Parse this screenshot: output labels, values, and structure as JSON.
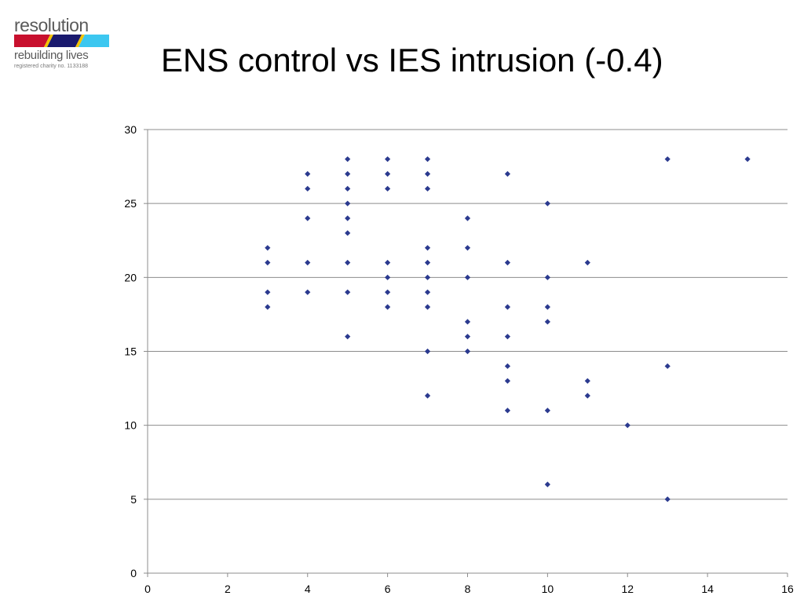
{
  "logo": {
    "word": "resolution",
    "tagline": "rebuilding lives",
    "charity": "registered charity no. 1133188",
    "colors": [
      "#c8102e",
      "#1a1a6e",
      "#3cc7f0",
      "#f2c200"
    ]
  },
  "title": "ENS control vs IES intrusion (-0.4)",
  "chart_data": {
    "type": "scatter",
    "title": "ENS control vs IES intrusion (-0.4)",
    "xlabel": "",
    "ylabel": "",
    "xlim": [
      0,
      16
    ],
    "ylim": [
      0,
      30
    ],
    "x_ticks": [
      0,
      2,
      4,
      6,
      8,
      10,
      12,
      14,
      16
    ],
    "y_ticks": [
      0,
      5,
      10,
      15,
      20,
      25,
      30
    ],
    "grid": "horizontal",
    "marker": "diamond",
    "color": "#2b3a8f",
    "points": [
      [
        3,
        22
      ],
      [
        3,
        21
      ],
      [
        3,
        19
      ],
      [
        3,
        18
      ],
      [
        4,
        27
      ],
      [
        4,
        26
      ],
      [
        4,
        24
      ],
      [
        4,
        21
      ],
      [
        4,
        19
      ],
      [
        5,
        28
      ],
      [
        5,
        27
      ],
      [
        5,
        26
      ],
      [
        5,
        25
      ],
      [
        5,
        24
      ],
      [
        5,
        23
      ],
      [
        5,
        21
      ],
      [
        5,
        19
      ],
      [
        5,
        16
      ],
      [
        6,
        28
      ],
      [
        6,
        27
      ],
      [
        6,
        26
      ],
      [
        6,
        21
      ],
      [
        6,
        20
      ],
      [
        6,
        19
      ],
      [
        6,
        18
      ],
      [
        7,
        28
      ],
      [
        7,
        27
      ],
      [
        7,
        26
      ],
      [
        7,
        22
      ],
      [
        7,
        21
      ],
      [
        7,
        20
      ],
      [
        7,
        19
      ],
      [
        7,
        18
      ],
      [
        7,
        15
      ],
      [
        7,
        12
      ],
      [
        8,
        24
      ],
      [
        8,
        22
      ],
      [
        8,
        20
      ],
      [
        8,
        17
      ],
      [
        8,
        16
      ],
      [
        8,
        15
      ],
      [
        9,
        27
      ],
      [
        9,
        21
      ],
      [
        9,
        18
      ],
      [
        9,
        16
      ],
      [
        9,
        14
      ],
      [
        9,
        13
      ],
      [
        9,
        11
      ],
      [
        10,
        25
      ],
      [
        10,
        20
      ],
      [
        10,
        18
      ],
      [
        10,
        17
      ],
      [
        10,
        11
      ],
      [
        10,
        6
      ],
      [
        11,
        21
      ],
      [
        11,
        13
      ],
      [
        11,
        12
      ],
      [
        12,
        10
      ],
      [
        13,
        28
      ],
      [
        13,
        14
      ],
      [
        13,
        5
      ],
      [
        15,
        28
      ]
    ]
  }
}
